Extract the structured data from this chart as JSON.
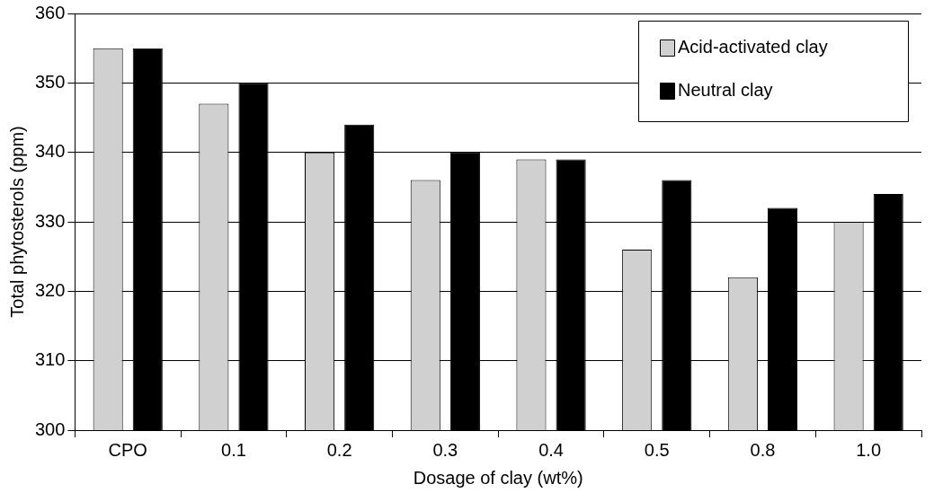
{
  "chart_data": {
    "type": "bar",
    "xlabel": "Dosage of clay (wt%)",
    "ylabel": "Total phytosterols (ppm)",
    "categories": [
      "CPO",
      "0.1",
      "0.2",
      "0.3",
      "0.4",
      "0.5",
      "0.8",
      "1.0"
    ],
    "series": [
      {
        "name": "Acid-activated clay",
        "color": "#d0d0d0",
        "values": [
          355,
          347,
          340,
          336,
          339,
          326,
          322,
          330
        ]
      },
      {
        "name": "Neutral clay",
        "color": "#000000",
        "values": [
          355,
          350,
          344,
          340,
          339,
          336,
          332,
          334
        ]
      }
    ],
    "ylim": [
      300,
      360
    ],
    "yticks": [
      300,
      310,
      320,
      330,
      340,
      350,
      360
    ],
    "grid": "y",
    "legend": "top right"
  }
}
